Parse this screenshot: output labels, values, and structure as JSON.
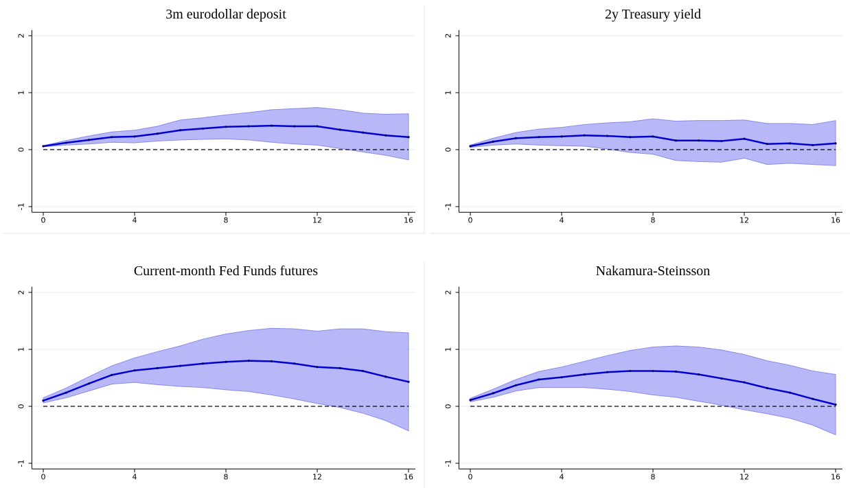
{
  "chart_data": [
    {
      "type": "line",
      "title": "3m eurodollar deposit",
      "x": [
        0,
        1,
        2,
        3,
        4,
        5,
        6,
        7,
        8,
        9,
        10,
        11,
        12,
        13,
        14,
        15,
        16
      ],
      "series": [
        {
          "color": "#0000d0",
          "values": [
            0.06,
            0.12,
            0.17,
            0.22,
            0.23,
            0.28,
            0.34,
            0.37,
            0.4,
            0.41,
            0.42,
            0.41,
            0.41,
            0.35,
            0.3,
            0.25,
            0.22
          ]
        }
      ],
      "band": {
        "color": "#b8b8f8",
        "upper": [
          0.07,
          0.16,
          0.24,
          0.31,
          0.34,
          0.41,
          0.52,
          0.56,
          0.61,
          0.65,
          0.7,
          0.72,
          0.74,
          0.7,
          0.64,
          0.62,
          0.63
        ],
        "lower": [
          0.05,
          0.08,
          0.1,
          0.13,
          0.12,
          0.15,
          0.17,
          0.18,
          0.19,
          0.17,
          0.13,
          0.1,
          0.08,
          0.02,
          -0.04,
          -0.1,
          -0.18
        ]
      },
      "hline": 0,
      "xlim": [
        -0.5,
        16.3
      ],
      "ylim": [
        -1.1,
        2.1
      ],
      "xticks": [
        0,
        4,
        8,
        12,
        16
      ],
      "yticks": [
        -1,
        0,
        1,
        2
      ],
      "grid": true
    },
    {
      "type": "line",
      "title": "2y Treasury yield",
      "x": [
        0,
        1,
        2,
        3,
        4,
        5,
        6,
        7,
        8,
        9,
        10,
        11,
        12,
        13,
        14,
        15,
        16
      ],
      "series": [
        {
          "color": "#0000d0",
          "values": [
            0.06,
            0.14,
            0.2,
            0.22,
            0.23,
            0.25,
            0.24,
            0.22,
            0.23,
            0.16,
            0.16,
            0.15,
            0.19,
            0.1,
            0.11,
            0.08,
            0.11
          ]
        }
      ],
      "band": {
        "color": "#b8b8f8",
        "upper": [
          0.08,
          0.2,
          0.3,
          0.36,
          0.39,
          0.44,
          0.47,
          0.49,
          0.54,
          0.5,
          0.51,
          0.51,
          0.52,
          0.46,
          0.46,
          0.44,
          0.51
        ],
        "lower": [
          0.04,
          0.08,
          0.1,
          0.08,
          0.07,
          0.06,
          0.01,
          -0.05,
          -0.08,
          -0.19,
          -0.21,
          -0.22,
          -0.15,
          -0.26,
          -0.24,
          -0.26,
          -0.28
        ]
      },
      "hline": 0,
      "xlim": [
        -0.5,
        16.3
      ],
      "ylim": [
        -1.1,
        2.1
      ],
      "xticks": [
        0,
        4,
        8,
        12,
        16
      ],
      "yticks": [
        -1,
        0,
        1,
        2
      ],
      "grid": true
    },
    {
      "type": "line",
      "title": "Current-month Fed Funds futures",
      "x": [
        0,
        1,
        2,
        3,
        4,
        5,
        6,
        7,
        8,
        9,
        10,
        11,
        12,
        13,
        14,
        15,
        16
      ],
      "series": [
        {
          "color": "#0000d0",
          "values": [
            0.1,
            0.24,
            0.4,
            0.55,
            0.63,
            0.67,
            0.71,
            0.75,
            0.78,
            0.8,
            0.79,
            0.75,
            0.69,
            0.67,
            0.62,
            0.52,
            0.43
          ]
        }
      ],
      "band": {
        "color": "#b8b8f8",
        "upper": [
          0.15,
          0.32,
          0.52,
          0.71,
          0.85,
          0.96,
          1.06,
          1.18,
          1.27,
          1.33,
          1.37,
          1.36,
          1.32,
          1.36,
          1.36,
          1.31,
          1.29
        ],
        "lower": [
          0.06,
          0.15,
          0.27,
          0.39,
          0.42,
          0.38,
          0.35,
          0.33,
          0.29,
          0.26,
          0.2,
          0.13,
          0.05,
          -0.02,
          -0.12,
          -0.25,
          -0.43
        ]
      },
      "hline": 0,
      "xlim": [
        -0.5,
        16.3
      ],
      "ylim": [
        -1.1,
        2.1
      ],
      "xticks": [
        0,
        4,
        8,
        12,
        16
      ],
      "yticks": [
        -1,
        0,
        1,
        2
      ],
      "grid": true
    },
    {
      "type": "line",
      "title": "Nakamura-Steinsson",
      "x": [
        0,
        1,
        2,
        3,
        4,
        5,
        6,
        7,
        8,
        9,
        10,
        11,
        12,
        13,
        14,
        15,
        16
      ],
      "series": [
        {
          "color": "#0000d0",
          "values": [
            0.11,
            0.23,
            0.37,
            0.47,
            0.51,
            0.56,
            0.6,
            0.62,
            0.62,
            0.61,
            0.56,
            0.49,
            0.42,
            0.32,
            0.24,
            0.13,
            0.03
          ]
        }
      ],
      "band": {
        "color": "#b8b8f8",
        "upper": [
          0.14,
          0.3,
          0.47,
          0.61,
          0.69,
          0.79,
          0.89,
          0.98,
          1.04,
          1.06,
          1.04,
          0.99,
          0.91,
          0.8,
          0.72,
          0.62,
          0.56
        ],
        "lower": [
          0.08,
          0.16,
          0.27,
          0.33,
          0.33,
          0.33,
          0.3,
          0.26,
          0.2,
          0.16,
          0.09,
          0.02,
          -0.06,
          -0.13,
          -0.21,
          -0.33,
          -0.5
        ]
      },
      "hline": 0,
      "xlim": [
        -0.5,
        16.3
      ],
      "ylim": [
        -1.1,
        2.1
      ],
      "xticks": [
        0,
        4,
        8,
        12,
        16
      ],
      "yticks": [
        -1,
        0,
        1,
        2
      ],
      "grid": true
    }
  ]
}
